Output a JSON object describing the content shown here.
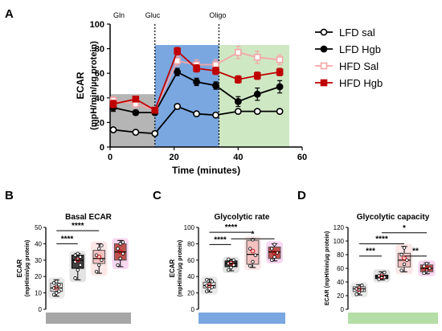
{
  "panels": {
    "A": "A",
    "B": "B",
    "C": "C",
    "D": "D"
  },
  "chart_data": [
    {
      "type": "line",
      "panel": "A",
      "xlabel": "Time (minutes)",
      "ylabel": "ECAR",
      "ylabel2": "(mpH/min/µg protein)",
      "xlim": [
        0,
        60
      ],
      "ylim": [
        0,
        100
      ],
      "x_ticks": [
        0,
        20,
        40,
        60
      ],
      "y_ticks": [
        0,
        20,
        40,
        60,
        80,
        100
      ],
      "grid": false,
      "legend_placement": "right",
      "injections": [
        {
          "label": "Gln",
          "x": 0
        },
        {
          "label": "Gluc",
          "x": 14
        },
        {
          "label": "Oligo",
          "x": 34
        }
      ],
      "shaded_regions": [
        {
          "x0": 0,
          "x1": 14,
          "y1": 43,
          "color": "#b5b5b5"
        },
        {
          "x0": 14,
          "x1": 34,
          "y1": 83,
          "color": "#7aa7e0"
        },
        {
          "x0": 34,
          "x1": 56,
          "y1": 83,
          "color": "#cfe8c4"
        }
      ],
      "x": [
        1,
        8,
        14,
        21,
        27,
        33,
        40,
        46,
        53
      ],
      "series": [
        {
          "name": "LFD sal",
          "color": "#000000",
          "marker": "circle-open",
          "values": [
            14,
            12,
            11,
            33,
            27,
            26,
            29,
            29,
            29
          ],
          "errors": [
            1,
            1,
            1,
            2,
            1,
            1,
            1,
            1,
            1
          ]
        },
        {
          "name": "LFD Hgb",
          "color": "#000000",
          "marker": "circle-filled",
          "values": [
            32,
            28,
            28,
            61,
            53,
            50,
            37,
            43,
            49
          ],
          "errors": [
            3,
            2,
            2,
            3,
            3,
            3,
            4,
            5,
            5
          ]
        },
        {
          "name": "HFD Sal",
          "color": "#f4a6a6",
          "marker": "square-open",
          "values": [
            38,
            35,
            30,
            70,
            67,
            67,
            77,
            73,
            71
          ],
          "errors": [
            3,
            2,
            2,
            4,
            4,
            4,
            5,
            5,
            4
          ]
        },
        {
          "name": "HFD Hgb",
          "color": "#c00000",
          "marker": "square-filled",
          "values": [
            35,
            39,
            30,
            78,
            64,
            62,
            55,
            58,
            61
          ],
          "errors": [
            3,
            2,
            2,
            3,
            3,
            3,
            3,
            3,
            3
          ]
        }
      ]
    },
    {
      "type": "box",
      "panel": "B",
      "title": "Basal ECAR",
      "ylabel": "ECAR",
      "ylabel2": "(mpH/min/µg protein)",
      "ylim": [
        0,
        50
      ],
      "y_ticks": [
        0,
        10,
        20,
        30,
        40,
        50
      ],
      "bar_color": "#a6a6a6",
      "boxes": [
        {
          "group": "LFD sal",
          "min": 8,
          "q1": 11,
          "median": 13,
          "q3": 16,
          "max": 18,
          "mean": 13,
          "fill": "#e6e6e6",
          "stroke": "#555555",
          "glow": "#d9d9d9",
          "points": [
            9,
            10,
            11,
            13,
            14,
            15,
            16,
            17
          ]
        },
        {
          "group": "LFD Hgb",
          "min": 18,
          "q1": 25,
          "median": 30,
          "q3": 33,
          "max": 34,
          "mean": 30,
          "fill": "#404040",
          "stroke": "#000000",
          "glow": "#cccccc",
          "points": [
            19,
            24,
            27,
            29,
            31,
            32,
            33,
            34
          ]
        },
        {
          "group": "HFD Sal",
          "min": 22,
          "q1": 28,
          "median": 31,
          "q3": 36,
          "max": 40,
          "mean": 32,
          "fill": "#f4c1c1",
          "stroke": "#555555",
          "glow": "#f7d4d4",
          "points": [
            23,
            27,
            30,
            33,
            37,
            39
          ]
        },
        {
          "group": "HFD Hgb",
          "min": 26,
          "q1": 30,
          "median": 35,
          "q3": 40,
          "max": 42,
          "mean": 35,
          "fill": "#c0504d",
          "stroke": "#555555",
          "glow": "#f2b6e6",
          "points": [
            27,
            31,
            34,
            37,
            40,
            41
          ]
        }
      ],
      "significance": [
        {
          "from": 0,
          "to": 1,
          "y": 40,
          "label": "****"
        },
        {
          "from": 0,
          "to": 2,
          "y": 48,
          "label": "****"
        }
      ]
    },
    {
      "type": "box",
      "panel": "C",
      "title": "Glycolytic rate",
      "ylabel": "ECAR",
      "ylabel2": "(mpH/min/µg protein)",
      "ylim": [
        0,
        100
      ],
      "y_ticks": [
        0,
        20,
        40,
        60,
        80,
        100
      ],
      "bar_color": "#7aa7e0",
      "boxes": [
        {
          "group": "LFD sal",
          "min": 21,
          "q1": 26,
          "median": 29,
          "q3": 33,
          "max": 37,
          "mean": 29,
          "fill": "#e6e6e6",
          "stroke": "#555555",
          "glow": "#d9d9d9",
          "points": [
            22,
            25,
            27,
            29,
            31,
            34,
            36
          ]
        },
        {
          "group": "LFD Hgb",
          "min": 47,
          "q1": 52,
          "median": 56,
          "q3": 59,
          "max": 61,
          "mean": 56,
          "fill": "#404040",
          "stroke": "#000000",
          "glow": "#cccccc",
          "points": [
            48,
            51,
            54,
            56,
            58,
            60,
            61
          ]
        },
        {
          "group": "HFD Sal",
          "min": 51,
          "q1": 55,
          "median": 67,
          "q3": 84,
          "max": 86,
          "mean": 71,
          "fill": "#f4c1c1",
          "stroke": "#555555",
          "glow": "#f7d4d4",
          "points": [
            53,
            58,
            66,
            74,
            85
          ]
        },
        {
          "group": "HFD Hgb",
          "min": 59,
          "q1": 62,
          "median": 70,
          "q3": 76,
          "max": 80,
          "mean": 69,
          "fill": "#c0504d",
          "stroke": "#555555",
          "glow": "#f2b6e6",
          "points": [
            60,
            64,
            69,
            74,
            79
          ]
        }
      ],
      "significance": [
        {
          "from": 0,
          "to": 1,
          "y": 79,
          "label": "****"
        },
        {
          "from": 0,
          "to": 2,
          "y": 94,
          "label": "****"
        },
        {
          "from": 1,
          "to": 3,
          "y": 86,
          "label": "*"
        }
      ]
    },
    {
      "type": "box",
      "panel": "D",
      "title": "Glycolytic capacity",
      "ylabel": "ECAR (mpH/min/µg protein)",
      "ylim": [
        0,
        120
      ],
      "y_ticks": [
        0,
        20,
        40,
        60,
        80,
        100,
        120
      ],
      "bar_color": "#b5dea6",
      "boxes": [
        {
          "group": "LFD sal",
          "min": 21,
          "q1": 26,
          "median": 30,
          "q3": 33,
          "max": 36,
          "mean": 29,
          "fill": "#e6e6e6",
          "stroke": "#555555",
          "glow": "#d9d9d9",
          "points": [
            22,
            25,
            28,
            30,
            32,
            35
          ]
        },
        {
          "group": "LFD Hgb",
          "min": 43,
          "q1": 45,
          "median": 48,
          "q3": 50,
          "max": 55,
          "mean": 48,
          "fill": "#404040",
          "stroke": "#000000",
          "glow": "#cccccc",
          "points": [
            44,
            46,
            47,
            49,
            51,
            54
          ]
        },
        {
          "group": "HFD Sal",
          "min": 55,
          "q1": 62,
          "median": 72,
          "q3": 82,
          "max": 92,
          "mean": 75,
          "fill": "#f4c1c1",
          "stroke": "#555555",
          "glow": "#f7d4d4",
          "points": [
            57,
            66,
            72,
            80,
            90
          ]
        },
        {
          "group": "HFD Hgb",
          "min": 52,
          "q1": 55,
          "median": 60,
          "q3": 65,
          "max": 68,
          "mean": 60,
          "fill": "#c0504d",
          "stroke": "#555555",
          "glow": "#f2b6e6",
          "points": [
            53,
            57,
            60,
            63,
            67
          ]
        }
      ],
      "significance": [
        {
          "from": 0,
          "to": 1,
          "y": 78,
          "label": "***"
        },
        {
          "from": 0,
          "to": 2,
          "y": 96,
          "label": "****"
        },
        {
          "from": 2,
          "to": 3,
          "y": 78,
          "label": "**"
        },
        {
          "from": 1,
          "to": 3,
          "y": 112,
          "label": "*"
        }
      ]
    }
  ]
}
